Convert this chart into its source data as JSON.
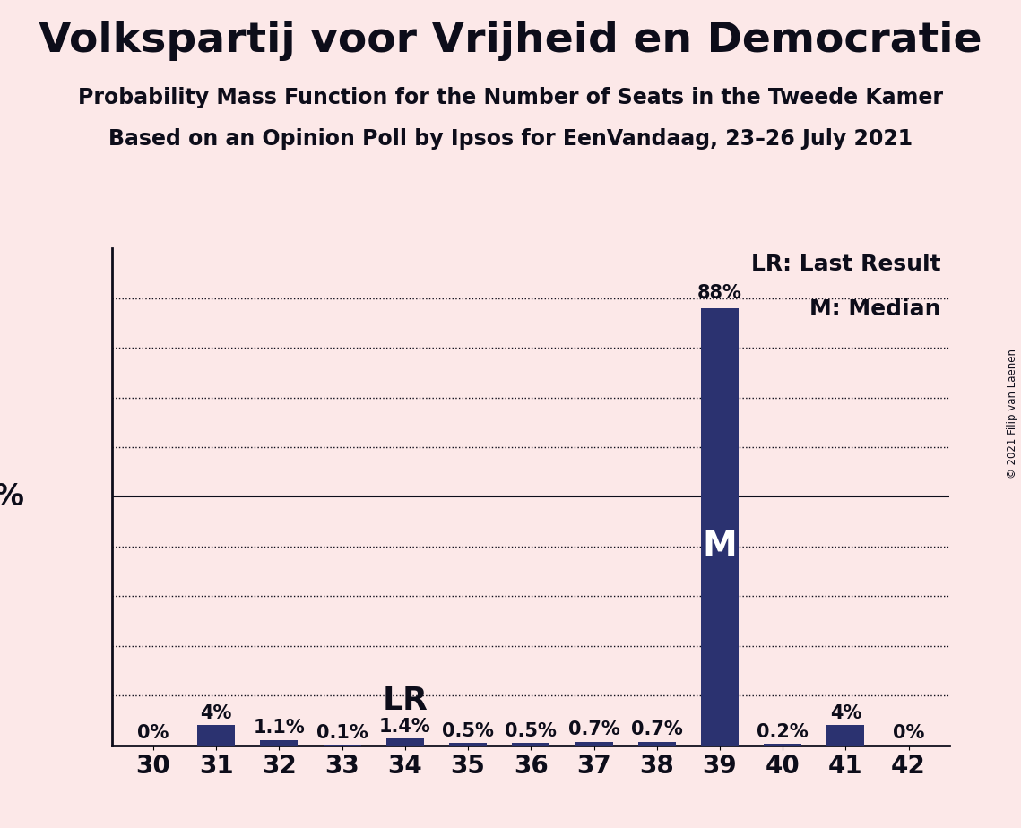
{
  "title": "Volkspartij voor Vrijheid en Democratie",
  "subtitle1": "Probability Mass Function for the Number of Seats in the Tweede Kamer",
  "subtitle2": "Based on an Opinion Poll by Ipsos for EenVandaag, 23–26 July 2021",
  "copyright": "© 2021 Filip van Laenen",
  "categories": [
    30,
    31,
    32,
    33,
    34,
    35,
    36,
    37,
    38,
    39,
    40,
    41,
    42
  ],
  "values": [
    0.0,
    4.0,
    1.1,
    0.1,
    1.4,
    0.5,
    0.5,
    0.7,
    0.7,
    88.0,
    0.2,
    4.0,
    0.0
  ],
  "labels": [
    "0%",
    "4%",
    "1.1%",
    "0.1%",
    "1.4%",
    "0.5%",
    "0.5%",
    "0.7%",
    "0.7%",
    "88%",
    "0.2%",
    "4%",
    "0%"
  ],
  "bar_color": "#2b3270",
  "background_color": "#fce8e8",
  "last_result_seat": 34,
  "median_seat": 39,
  "lr_label": "LR",
  "m_label": "M",
  "legend_lr": "LR: Last Result",
  "legend_m": "M: Median",
  "ymax": 100,
  "title_fontsize": 34,
  "subtitle_fontsize": 17,
  "label_fontsize": 15,
  "tick_fontsize": 20,
  "ytick_fontsize": 24,
  "lr_fontsize": 26,
  "m_fontsize": 28,
  "legend_fontsize": 18
}
